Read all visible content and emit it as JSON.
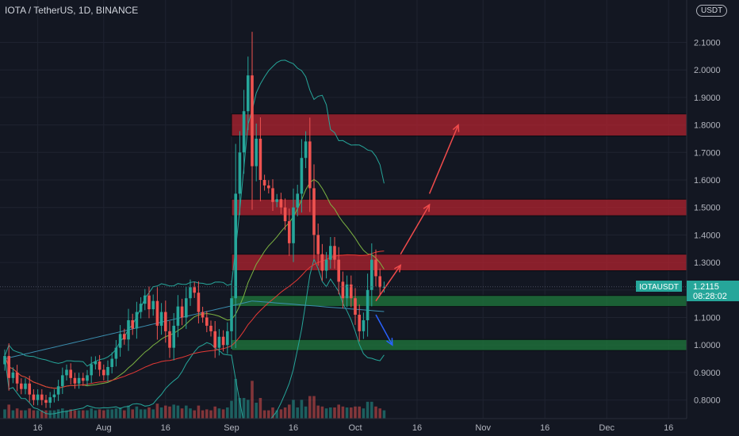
{
  "header": {
    "title": "IOTA / TetherUS, 1D, BINANCE",
    "currency_badge": "USDT"
  },
  "price_tag": {
    "symbol": "IOTAUSDT",
    "price": "1.2115",
    "countdown": "08:28:02"
  },
  "colors": {
    "up": "#26a69a",
    "down": "#ef5350",
    "zone_red": "#b2232f",
    "zone_green": "#1f7a3c",
    "arrow_red": "#f04b4b",
    "arrow_blue": "#2962ff"
  },
  "chart_data": {
    "type": "candlestick",
    "title": "IOTA / TetherUS, 1D, BINANCE",
    "xlabel": "",
    "ylabel": "",
    "ylim": [
      0.72,
      2.15
    ],
    "y_ticks": [
      "0.8000",
      "0.9000",
      "1.0000",
      "1.1000",
      "1.2000",
      "1.3000",
      "1.4000",
      "1.5000",
      "1.6000",
      "1.7000",
      "1.8000",
      "1.9000",
      "2.0000",
      "2.1000"
    ],
    "x_ticks": [
      "16",
      "Aug",
      "16",
      "Sep",
      "16",
      "Oct",
      "16",
      "Nov",
      "16",
      "Dec",
      "16"
    ],
    "start_day": "2021-07-08",
    "current_price": 1.2115,
    "zones": [
      {
        "low": 1.76,
        "high": 1.84,
        "color": "red"
      },
      {
        "low": 1.47,
        "high": 1.53,
        "color": "red"
      },
      {
        "low": 1.27,
        "high": 1.33,
        "color": "red"
      },
      {
        "low": 1.14,
        "high": 1.18,
        "color": "green"
      },
      {
        "low": 0.98,
        "high": 1.02,
        "color": "green"
      }
    ],
    "projections": [
      {
        "from": [
          "2021-10-06",
          1.16
        ],
        "to": [
          "2021-10-12",
          1.29
        ],
        "color": "red"
      },
      {
        "from": [
          "2021-10-12",
          1.33
        ],
        "to": [
          "2021-10-19",
          1.51
        ],
        "color": "red"
      },
      {
        "from": [
          "2021-10-19",
          1.55
        ],
        "to": [
          "2021-10-26",
          1.8
        ],
        "color": "red"
      },
      {
        "from": [
          "2021-10-06",
          1.11
        ],
        "to": [
          "2021-10-10",
          1.0
        ],
        "color": "blue"
      }
    ],
    "closes": [
      0.96,
      0.88,
      0.9,
      0.86,
      0.84,
      0.86,
      0.82,
      0.8,
      0.82,
      0.8,
      0.79,
      0.81,
      0.82,
      0.85,
      0.89,
      0.91,
      0.88,
      0.86,
      0.88,
      0.87,
      0.89,
      0.93,
      0.94,
      0.91,
      0.89,
      0.92,
      0.95,
      0.99,
      1.04,
      1.02,
      1.09,
      1.06,
      1.12,
      1.15,
      1.18,
      1.13,
      1.16,
      1.07,
      1.12,
      1.05,
      0.99,
      1.07,
      1.14,
      1.1,
      1.17,
      1.21,
      1.19,
      1.12,
      1.1,
      1.07,
      1.05,
      0.99,
      1.03,
      1.0,
      1.05,
      1.17,
      1.55,
      1.7,
      1.85,
      1.98,
      1.65,
      1.75,
      1.6,
      1.58,
      1.57,
      1.52,
      1.53,
      1.5,
      1.45,
      1.37,
      1.5,
      1.55,
      1.68,
      1.74,
      1.57,
      1.4,
      1.33,
      1.27,
      1.31,
      1.36,
      1.31,
      1.23,
      1.17,
      1.22,
      1.17,
      1.11,
      1.05,
      1.09,
      1.2,
      1.31,
      1.25,
      1.21,
      1.2115
    ]
  }
}
